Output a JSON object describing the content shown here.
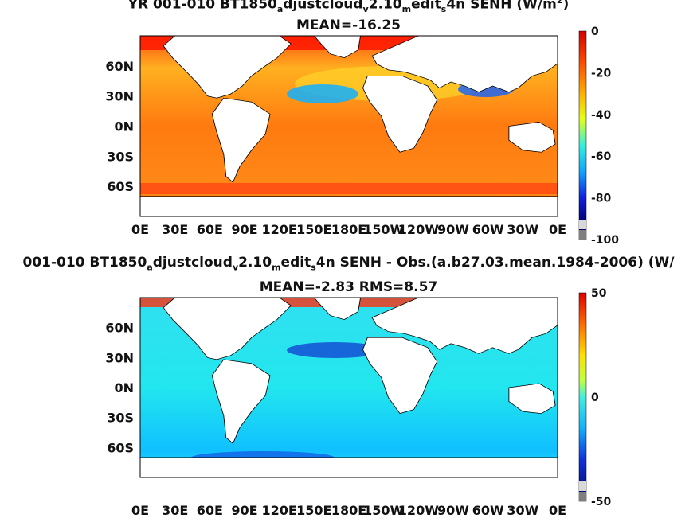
{
  "panels": [
    {
      "title_parts": [
        "YR 001-010 BT1850",
        "a",
        "djustcloud",
        "v",
        "2.10",
        "m",
        "edit",
        "s",
        "4n  SENH (W/m",
        "2",
        ")"
      ],
      "subtitle": "MEAN=-16.25",
      "colorbar": {
        "ticks": [
          "0",
          "-20",
          "-40",
          "-60",
          "-80",
          "-100"
        ],
        "min": -100,
        "max": 0
      }
    },
    {
      "title_parts": [
        "001-010 BT1850",
        "a",
        "djustcloud",
        "v",
        "2.10",
        "m",
        "edit",
        "s",
        "4n SENH - Obs.(a.b27.03.mean.1984-2006) (W/",
        "",
        ""
      ],
      "subtitle": "MEAN=-2.83 RMS=8.57",
      "colorbar": {
        "ticks": [
          "50",
          "0",
          "-50"
        ],
        "min": -50,
        "max": 50
      }
    }
  ],
  "axes": {
    "lat_ticks": [
      "60N",
      "30N",
      "0N",
      "30S",
      "60S"
    ],
    "lon_ticks": [
      "0E",
      "30E",
      "60E",
      "90E",
      "120E",
      "150E",
      "180E",
      "150W",
      "120W",
      "90W",
      "60W",
      "30W",
      "0E"
    ]
  },
  "chart_data": [
    {
      "type": "heatmap",
      "title": "YR 001-010 BT1850adjustcloudv2.10meditS4n  SENH (W/m2)",
      "subtitle": "MEAN=-16.25",
      "x_ticks": [
        "0E",
        "30E",
        "60E",
        "90E",
        "120E",
        "150E",
        "180E",
        "150W",
        "120W",
        "90W",
        "60W",
        "30W",
        "0E"
      ],
      "y_ticks": [
        "60N",
        "30N",
        "0N",
        "30S",
        "60S"
      ],
      "xlim": [
        0,
        360
      ],
      "ylim": [
        -90,
        90
      ],
      "colorbar_range": [
        -100,
        0
      ],
      "colorbar_ticks": [
        0,
        -20,
        -40,
        -60,
        -80,
        -100
      ],
      "mean": -16.25
    },
    {
      "type": "heatmap",
      "title": "001-010 BT1850adjustcloudv2.10meditS4n SENH - Obs.(a.b27.03.mean.1984-2006) (W/",
      "subtitle": "MEAN=-2.83 RMS=8.57",
      "x_ticks": [
        "0E",
        "30E",
        "60E",
        "90E",
        "120E",
        "150E",
        "180E",
        "150W",
        "120W",
        "90W",
        "60W",
        "30W",
        "0E"
      ],
      "y_ticks": [
        "60N",
        "30N",
        "0N",
        "30S",
        "60S"
      ],
      "xlim": [
        0,
        360
      ],
      "ylim": [
        -90,
        90
      ],
      "colorbar_range": [
        -50,
        50
      ],
      "colorbar_ticks": [
        50,
        0,
        -50
      ],
      "mean": -2.83,
      "rms": 8.57
    }
  ],
  "colors": {
    "ocean_top": "#ff7a10",
    "ocean_bottom": "#22e6ee",
    "land": "#ffffff",
    "missing": "#7f7f7f"
  }
}
